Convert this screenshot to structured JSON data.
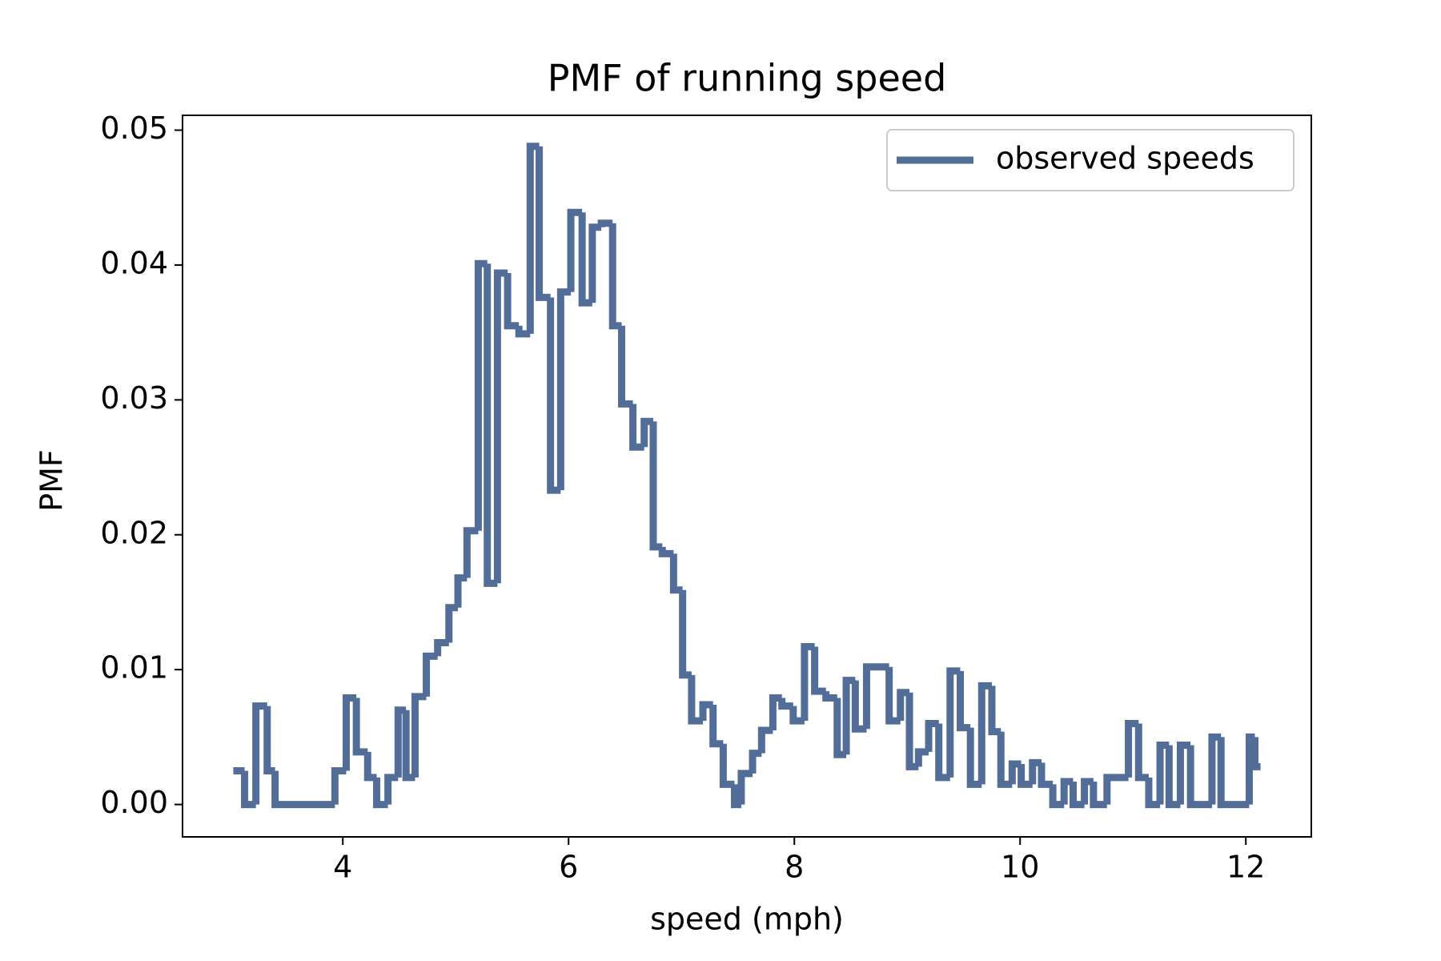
{
  "chart_data": {
    "type": "step",
    "title": "PMF of running speed",
    "x_label": "speed (mph)",
    "y_label": "PMF",
    "series": [
      {
        "name": "observed speeds",
        "color": "#526d98",
        "x": [
          3.03,
          3.13,
          3.23,
          3.33,
          3.4,
          3.93,
          4.03,
          4.12,
          4.22,
          4.3,
          4.4,
          4.49,
          4.56,
          4.64,
          4.74,
          4.84,
          4.94,
          5.02,
          5.1,
          5.2,
          5.28,
          5.37,
          5.46,
          5.56,
          5.66,
          5.74,
          5.84,
          5.93,
          6.02,
          6.12,
          6.21,
          6.29,
          6.39,
          6.47,
          6.57,
          6.67,
          6.75,
          6.83,
          6.93,
          7.01,
          7.09,
          7.19,
          7.28,
          7.37,
          7.47,
          7.53,
          7.63,
          7.71,
          7.81,
          7.89,
          7.99,
          8.09,
          8.18,
          8.28,
          8.38,
          8.46,
          8.54,
          8.64,
          8.84,
          8.94,
          9.02,
          9.1,
          9.19,
          9.28,
          9.38,
          9.47,
          9.56,
          9.66,
          9.75,
          9.83,
          9.93,
          10.01,
          10.11,
          10.19,
          10.29,
          10.39,
          10.47,
          10.57,
          10.65,
          10.77,
          10.96,
          11.05,
          11.14,
          11.24,
          11.32,
          11.42,
          11.51,
          11.7,
          11.78,
          12.03,
          12.08
        ],
        "values": [
          0.0025,
          0,
          0.0073,
          0.0025,
          0,
          0.0025,
          0.0079,
          0.0039,
          0.002,
          0,
          0.002,
          0.007,
          0.002,
          0.008,
          0.011,
          0.012,
          0.0146,
          0.0168,
          0.0203,
          0.0401,
          0.0164,
          0.0394,
          0.0355,
          0.0349,
          0.0488,
          0.0376,
          0.0233,
          0.038,
          0.0439,
          0.0372,
          0.0428,
          0.0431,
          0.0355,
          0.0297,
          0.0265,
          0.0284,
          0.0191,
          0.0186,
          0.0159,
          0.0096,
          0.0062,
          0.0074,
          0.0045,
          0.0015,
          0,
          0.0023,
          0.0038,
          0.0055,
          0.0079,
          0.0073,
          0.0062,
          0.0117,
          0.0084,
          0.0079,
          0.0037,
          0.0092,
          0.0056,
          0.0102,
          0.0062,
          0.0083,
          0.0028,
          0.0039,
          0.006,
          0.002,
          0.0099,
          0.0057,
          0.0015,
          0.0088,
          0.0054,
          0.0015,
          0.003,
          0.0015,
          0.0031,
          0.0015,
          0,
          0.0017,
          0,
          0.0017,
          0,
          0.002,
          0.006,
          0.002,
          0,
          0.0044,
          0,
          0.0044,
          0,
          0.005,
          0,
          0.005,
          0.0028
        ]
      }
    ],
    "xlim": [
      2.58,
      12.58
    ],
    "xticks": [
      4,
      6,
      8,
      10,
      12
    ],
    "ylim": [
      -0.0024,
      0.0511
    ],
    "yticks": [
      {
        "value": 0,
        "label": "0.00"
      },
      {
        "value": 0.01,
        "label": "0.01"
      },
      {
        "value": 0.02,
        "label": "0.02"
      },
      {
        "value": 0.03,
        "label": "0.03"
      },
      {
        "value": 0.04,
        "label": "0.04"
      },
      {
        "value": 0.05,
        "label": "0.05"
      }
    ],
    "legend": "upper right"
  }
}
